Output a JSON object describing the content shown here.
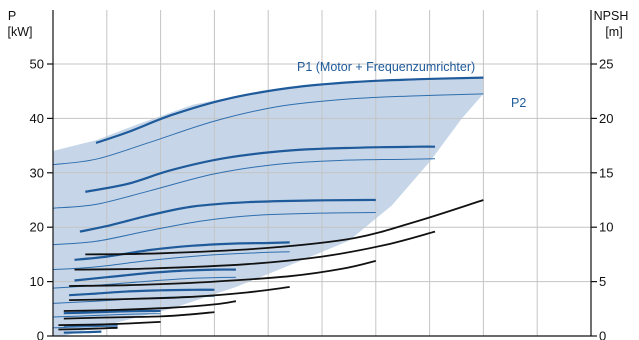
{
  "chart_data": {
    "type": "line",
    "left_axis": {
      "label_line1": "P",
      "label_line2": "[kW]",
      "ticks": [
        "0",
        "10",
        "20",
        "30",
        "40",
        "50"
      ],
      "range": [
        0,
        55
      ]
    },
    "right_axis": {
      "label_line1": "NPSH",
      "label_line2": "[m]",
      "ticks": [
        "0",
        "5",
        "10",
        "15",
        "20",
        "25"
      ],
      "range": [
        0,
        27.5
      ]
    },
    "x_range": [
      0,
      100
    ],
    "x_grid": [
      0,
      10,
      20,
      30,
      40,
      50,
      60,
      70,
      80,
      90,
      100
    ],
    "grid": true,
    "annotations": {
      "p1": "P1 (Motor + Frequenzumrichter)",
      "p2": "P2"
    },
    "colors": {
      "p1": "#1f5a9a",
      "p2": "#2f6eae",
      "npsh": "#111111",
      "band": "#c6d6e8",
      "grid": "#c4c4c4"
    },
    "envelope": {
      "upper": [
        [
          0,
          34
        ],
        [
          2,
          34.5
        ],
        [
          8,
          36
        ],
        [
          16,
          39
        ],
        [
          26,
          42.5
        ],
        [
          36,
          44.5
        ],
        [
          46,
          46
        ],
        [
          56,
          46.8
        ],
        [
          66,
          47.2
        ],
        [
          76,
          47.4
        ],
        [
          80,
          47.5
        ]
      ],
      "lower_right": [
        [
          80,
          44.5
        ],
        [
          76,
          40
        ],
        [
          70,
          32
        ],
        [
          63,
          24
        ],
        [
          55,
          17.5
        ],
        [
          44,
          13
        ],
        [
          34,
          9
        ],
        [
          22,
          5
        ],
        [
          8,
          1.5
        ],
        [
          2,
          0
        ],
        [
          0,
          0
        ]
      ]
    },
    "p1_series": [
      {
        "x": [
          8,
          14,
          22,
          32,
          44,
          56,
          68,
          80
        ],
        "y": [
          35.5,
          37.5,
          40.6,
          43.5,
          45.6,
          46.7,
          47.2,
          47.5
        ]
      },
      {
        "x": [
          6,
          14,
          22,
          32,
          44,
          56,
          68,
          71
        ],
        "y": [
          26.5,
          28,
          30.5,
          32.7,
          34.1,
          34.6,
          34.8,
          34.8
        ]
      },
      {
        "x": [
          5,
          10,
          18,
          26,
          36,
          48,
          58,
          60
        ],
        "y": [
          19.2,
          20.2,
          22.2,
          23.8,
          24.6,
          24.9,
          25.0,
          25.0
        ]
      },
      {
        "x": [
          4,
          10,
          18,
          26,
          34,
          40,
          44
        ],
        "y": [
          14,
          14.6,
          15.8,
          16.6,
          17.0,
          17.1,
          17.2
        ]
      },
      {
        "x": [
          4,
          10,
          18,
          24,
          30,
          34
        ],
        "y": [
          10.2,
          10.8,
          11.6,
          12.0,
          12.2,
          12.2
        ]
      },
      {
        "x": [
          3,
          8,
          14,
          20,
          26,
          30
        ],
        "y": [
          7.5,
          7.8,
          8.2,
          8.4,
          8.5,
          8.5
        ]
      },
      {
        "x": [
          2,
          6,
          12,
          17,
          20
        ],
        "y": [
          4.2,
          4.3,
          4.5,
          4.6,
          4.6
        ]
      },
      {
        "x": [
          2,
          6,
          10,
          12
        ],
        "y": [
          1.9,
          2.0,
          2.1,
          2.1
        ]
      },
      {
        "x": [
          2,
          6,
          9
        ],
        "y": [
          0.6,
          0.7,
          0.8
        ]
      }
    ],
    "p2_series": [
      {
        "x": [
          0,
          8,
          18,
          30,
          42,
          54,
          66,
          80
        ],
        "y": [
          31.5,
          32.5,
          35.6,
          39.5,
          42.2,
          43.5,
          44.1,
          44.5
        ]
      },
      {
        "x": [
          0,
          8,
          18,
          30,
          42,
          54,
          66,
          71
        ],
        "y": [
          23.5,
          24.2,
          26.7,
          29.8,
          31.6,
          32.3,
          32.5,
          32.6
        ]
      },
      {
        "x": [
          0,
          8,
          18,
          28,
          38,
          50,
          60
        ],
        "y": [
          16.8,
          17.4,
          19.4,
          21.2,
          22.2,
          22.6,
          22.7
        ]
      },
      {
        "x": [
          0,
          8,
          18,
          28,
          38,
          44
        ],
        "y": [
          12.2,
          12.7,
          13.9,
          14.8,
          15.3,
          15.5
        ]
      },
      {
        "x": [
          0,
          8,
          18,
          26,
          34
        ],
        "y": [
          8.8,
          9.3,
          10.1,
          10.6,
          10.8
        ]
      },
      {
        "x": [
          0,
          8,
          16,
          24,
          30
        ],
        "y": [
          6.0,
          6.4,
          6.9,
          7.2,
          7.3
        ]
      },
      {
        "x": [
          0,
          6,
          14,
          20
        ],
        "y": [
          3.5,
          3.7,
          4.0,
          4.1
        ]
      },
      {
        "x": [
          0,
          6,
          12
        ],
        "y": [
          1.5,
          1.7,
          1.8
        ]
      }
    ],
    "npsh_series": [
      {
        "x": [
          6,
          20,
          40,
          56,
          68,
          80
        ],
        "y": [
          7.5,
          7.6,
          8.1,
          9.0,
          10.6,
          12.5
        ]
      },
      {
        "x": [
          4,
          18,
          36,
          50,
          62,
          71
        ],
        "y": [
          6.1,
          6.2,
          6.6,
          7.3,
          8.4,
          9.6
        ]
      },
      {
        "x": [
          3,
          16,
          30,
          44,
          54,
          60
        ],
        "y": [
          4.6,
          4.7,
          5.0,
          5.5,
          6.2,
          6.9
        ]
      },
      {
        "x": [
          3,
          14,
          26,
          36,
          44
        ],
        "y": [
          3.3,
          3.4,
          3.6,
          4.0,
          4.5
        ]
      },
      {
        "x": [
          2,
          12,
          22,
          30,
          34
        ],
        "y": [
          2.3,
          2.4,
          2.6,
          2.9,
          3.2
        ]
      },
      {
        "x": [
          2,
          10,
          20,
          26,
          30
        ],
        "y": [
          1.6,
          1.7,
          1.8,
          2.0,
          2.2
        ]
      },
      {
        "x": [
          1,
          8,
          14,
          20
        ],
        "y": [
          1.0,
          1.05,
          1.15,
          1.3
        ]
      },
      {
        "x": [
          1,
          6,
          12
        ],
        "y": [
          0.6,
          0.65,
          0.75
        ]
      }
    ]
  }
}
